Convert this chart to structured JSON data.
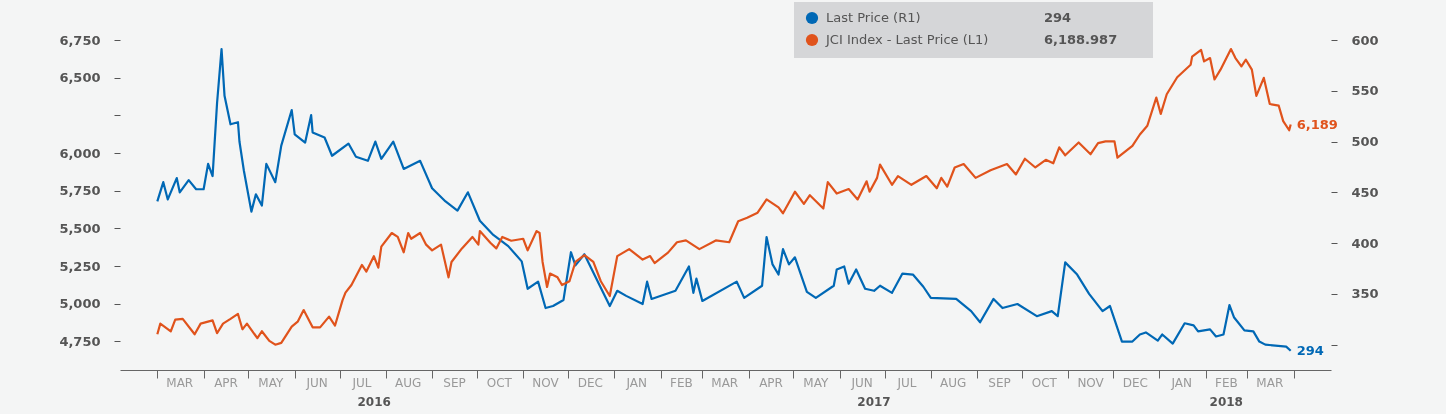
{
  "chart_data": {
    "type": "line",
    "legend": "top",
    "line_style": "solid",
    "xlim": [
      "2016-02-05",
      "2018-04-26"
    ],
    "xticks": [
      {
        "value": "2016-03-01",
        "label": null
      },
      {
        "value": "2016-03-16",
        "label": "MAR"
      },
      {
        "value": "2016-04-01",
        "label": null
      },
      {
        "value": "2016-04-16",
        "label": "APR"
      },
      {
        "value": "2016-05-01",
        "label": null
      },
      {
        "value": "2016-05-16",
        "label": "MAY"
      },
      {
        "value": "2016-06-01",
        "label": null
      },
      {
        "value": "2016-06-16",
        "label": "JUN"
      },
      {
        "value": "2016-07-01",
        "label": null
      },
      {
        "value": "2016-07-16",
        "label": "JUL"
      },
      {
        "value": "2016-08-01",
        "label": null
      },
      {
        "value": "2016-08-16",
        "label": "AUG"
      },
      {
        "value": "2016-09-01",
        "label": null
      },
      {
        "value": "2016-09-16",
        "label": "SEP"
      },
      {
        "value": "2016-10-01",
        "label": null
      },
      {
        "value": "2016-10-16",
        "label": "OCT"
      },
      {
        "value": "2016-11-01",
        "label": null
      },
      {
        "value": "2016-11-16",
        "label": "NOV"
      },
      {
        "value": "2016-12-01",
        "label": null
      },
      {
        "value": "2016-12-16",
        "label": "DEC"
      },
      {
        "value": "2017-01-01",
        "label": null
      },
      {
        "value": "2017-01-16",
        "label": "JAN"
      },
      {
        "value": "2017-02-01",
        "label": null
      },
      {
        "value": "2017-02-15",
        "label": "FEB"
      },
      {
        "value": "2017-03-01",
        "label": null
      },
      {
        "value": "2017-03-16",
        "label": "MAR"
      },
      {
        "value": "2017-04-01",
        "label": null
      },
      {
        "value": "2017-04-16",
        "label": "APR"
      },
      {
        "value": "2017-05-01",
        "label": null
      },
      {
        "value": "2017-05-16",
        "label": "MAY"
      },
      {
        "value": "2017-06-01",
        "label": null
      },
      {
        "value": "2017-06-16",
        "label": "JUN"
      },
      {
        "value": "2017-07-01",
        "label": null
      },
      {
        "value": "2017-07-16",
        "label": "JUL"
      },
      {
        "value": "2017-08-01",
        "label": null
      },
      {
        "value": "2017-08-16",
        "label": "AUG"
      },
      {
        "value": "2017-09-01",
        "label": null
      },
      {
        "value": "2017-09-16",
        "label": "SEP"
      },
      {
        "value": "2017-10-01",
        "label": null
      },
      {
        "value": "2017-10-16",
        "label": "OCT"
      },
      {
        "value": "2017-11-01",
        "label": null
      },
      {
        "value": "2017-11-16",
        "label": "NOV"
      },
      {
        "value": "2017-12-01",
        "label": null
      },
      {
        "value": "2017-12-16",
        "label": "DEC"
      },
      {
        "value": "2018-01-01",
        "label": null
      },
      {
        "value": "2018-01-16",
        "label": "JAN"
      },
      {
        "value": "2018-02-01",
        "label": null
      },
      {
        "value": "2018-02-15",
        "label": "FEB"
      },
      {
        "value": "2018-03-01",
        "label": null
      },
      {
        "value": "2018-03-16",
        "label": "MAR"
      },
      {
        "value": "2018-04-01",
        "label": null
      }
    ],
    "ylim": [
      4560,
      6750
    ],
    "yticks": [
      {
        "value": 4750,
        "label": "4,750"
      },
      {
        "value": 5000,
        "label": "5,000"
      },
      {
        "value": 5250,
        "label": "5,250"
      },
      {
        "value": 5500,
        "label": "5,500"
      },
      {
        "value": 5750,
        "label": "5,750"
      },
      {
        "value": 6000,
        "label": "6,000"
      },
      {
        "value": 6250,
        "label": null
      },
      {
        "value": 6500,
        "label": "6,500"
      },
      {
        "value": 6750,
        "label": "6,750"
      }
    ],
    "y2lim": [
      275,
      600
    ],
    "y2ticks": [
      {
        "value": 300,
        "label": null
      },
      {
        "value": 350,
        "label": "350"
      },
      {
        "value": 400,
        "label": "400"
      },
      {
        "value": 450,
        "label": "450"
      },
      {
        "value": 500,
        "label": "500"
      },
      {
        "value": 550,
        "label": "550"
      },
      {
        "value": 600,
        "label": "600"
      }
    ],
    "annotations": [
      "294",
      "6,188.987",
      "2016",
      "2017",
      "2018"
    ],
    "series": [
      {
        "name": "Last Price (R1)",
        "color": "#0068b5",
        "axis": "y2",
        "x": [
          "2016-03-01",
          "2016-03-05",
          "2016-03-08",
          "2016-03-14",
          "2016-03-16",
          "2016-03-22",
          "2016-03-27",
          "2016-04-01",
          "2016-04-04",
          "2016-04-07",
          "2016-04-10",
          "2016-04-13",
          "2016-04-15",
          "2016-04-19",
          "2016-04-24",
          "2016-04-25",
          "2016-04-28",
          "2016-05-03",
          "2016-05-06",
          "2016-05-10",
          "2016-05-13",
          "2016-05-19",
          "2016-05-23",
          "2016-05-30",
          "2016-06-01",
          "2016-06-08",
          "2016-06-12",
          "2016-06-13",
          "2016-06-21",
          "2016-06-26",
          "2016-07-07",
          "2016-07-12",
          "2016-07-20",
          "2016-07-25",
          "2016-07-29",
          "2016-08-06",
          "2016-08-13",
          "2016-08-24",
          "2016-09-01",
          "2016-09-10",
          "2016-09-18",
          "2016-09-25",
          "2016-10-03",
          "2016-10-12",
          "2016-10-22",
          "2016-10-31",
          "2016-11-04",
          "2016-11-11",
          "2016-11-16",
          "2016-11-21",
          "2016-11-28",
          "2016-12-03",
          "2016-12-06",
          "2016-12-12",
          "2016-12-22",
          "2016-12-29",
          "2017-01-03",
          "2017-01-09",
          "2017-01-20",
          "2017-01-23",
          "2017-01-26",
          "2017-02-11",
          "2017-02-20",
          "2017-02-23",
          "2017-02-25",
          "2017-03-01",
          "2017-03-24",
          "2017-03-29",
          "2017-04-10",
          "2017-04-13",
          "2017-04-17",
          "2017-04-21",
          "2017-04-24",
          "2017-04-28",
          "2017-05-02",
          "2017-05-10",
          "2017-05-16",
          "2017-05-28",
          "2017-05-30",
          "2017-06-04",
          "2017-06-07",
          "2017-06-12",
          "2017-06-18",
          "2017-06-24",
          "2017-06-28",
          "2017-07-06",
          "2017-07-13",
          "2017-07-20",
          "2017-07-27",
          "2017-08-01",
          "2017-08-18",
          "2017-08-28",
          "2017-09-03",
          "2017-09-12",
          "2017-09-18",
          "2017-09-28",
          "2017-10-11",
          "2017-10-21",
          "2017-10-25",
          "2017-10-30",
          "2017-11-07",
          "2017-11-15",
          "2017-11-24",
          "2017-11-29",
          "2017-12-07",
          "2017-12-14",
          "2017-12-19",
          "2017-12-23",
          "2017-12-31",
          "2018-01-03",
          "2018-01-10",
          "2018-01-18",
          "2018-01-24",
          "2018-01-27",
          "2018-02-04",
          "2018-02-08",
          "2018-02-13",
          "2018-02-17",
          "2018-02-20",
          "2018-02-27",
          "2018-03-05",
          "2018-03-09",
          "2018-03-13",
          "2018-03-27",
          "2018-03-30"
        ],
        "values": [
          441,
          460,
          443,
          464,
          450,
          462,
          453,
          453,
          478,
          466,
          538,
          591,
          545,
          517,
          519,
          500,
          471,
          431,
          448,
          437,
          478,
          460,
          496,
          531,
          507,
          499,
          526,
          509,
          504,
          486,
          498,
          485,
          481,
          500,
          483,
          500,
          473,
          481,
          454,
          441,
          432,
          450,
          422,
          408,
          397,
          382,
          355,
          362,
          336,
          338,
          344,
          391,
          378,
          389,
          359,
          338,
          353,
          348,
          340,
          362,
          345,
          353,
          377,
          351,
          365,
          343,
          362,
          346,
          358,
          406,
          379,
          369,
          394,
          379,
          386,
          352,
          346,
          358,
          374,
          377,
          360,
          374,
          355,
          353,
          358,
          351,
          370,
          369,
          357,
          346,
          345,
          333,
          322,
          345,
          336,
          340,
          328,
          333,
          328,
          381,
          369,
          350,
          333,
          338,
          303,
          303,
          310,
          312,
          304,
          310,
          301,
          321,
          319,
          313,
          315,
          308,
          310,
          339,
          327,
          314,
          313,
          303,
          300,
          298,
          294
        ],
        "value_labels": [
          null,
          null,
          null,
          null,
          null,
          null,
          null,
          null,
          null,
          null,
          null,
          null,
          null,
          null,
          null,
          null,
          null,
          null,
          null,
          null,
          null,
          null,
          null,
          null,
          null,
          null,
          null,
          null,
          null,
          null,
          null,
          null,
          null,
          null,
          null,
          null,
          null,
          null,
          null,
          null,
          null,
          null,
          null,
          null,
          null,
          null,
          null,
          null,
          null,
          null,
          null,
          null,
          null,
          null,
          null,
          null,
          null,
          null,
          null,
          null,
          null,
          null,
          null,
          null,
          null,
          null,
          null,
          null,
          null,
          null,
          null,
          null,
          null,
          null,
          null,
          null,
          null,
          null,
          null,
          null,
          null,
          null,
          null,
          null,
          null,
          null,
          null,
          null,
          null,
          null,
          null,
          null,
          null,
          null,
          null,
          null,
          null,
          null,
          null,
          null,
          null,
          null,
          null,
          null,
          null,
          null,
          null,
          null,
          null,
          null,
          null,
          null,
          null,
          null,
          null,
          null,
          null,
          null,
          null,
          null,
          null,
          null,
          null,
          null,
          "294"
        ]
      },
      {
        "name": "JCI Index - Last Price (L1)",
        "color": "#e0531c",
        "x": [
          "2016-03-01",
          "2016-03-03",
          "2016-03-10",
          "2016-03-13",
          "2016-03-18",
          "2016-03-26",
          "2016-03-30",
          "2016-04-07",
          "2016-04-10",
          "2016-04-14",
          "2016-04-19",
          "2016-04-24",
          "2016-04-27",
          "2016-04-30",
          "2016-05-07",
          "2016-05-10",
          "2016-05-15",
          "2016-05-19",
          "2016-05-23",
          "2016-05-30",
          "2016-06-03",
          "2016-06-07",
          "2016-06-13",
          "2016-06-18",
          "2016-06-24",
          "2016-06-28",
          "2016-07-03",
          "2016-07-05",
          "2016-07-09",
          "2016-07-16",
          "2016-07-19",
          "2016-07-24",
          "2016-07-27",
          "2016-07-29",
          "2016-08-05",
          "2016-08-09",
          "2016-08-13",
          "2016-08-16",
          "2016-08-18",
          "2016-08-24",
          "2016-08-28",
          "2016-09-01",
          "2016-09-07",
          "2016-09-12",
          "2016-09-14",
          "2016-09-21",
          "2016-09-28",
          "2016-10-02",
          "2016-10-03",
          "2016-10-10",
          "2016-10-14",
          "2016-10-18",
          "2016-10-24",
          "2016-11-01",
          "2016-11-04",
          "2016-11-10",
          "2016-11-12",
          "2016-11-14",
          "2016-11-17",
          "2016-11-19",
          "2016-11-24",
          "2016-11-27",
          "2016-12-02",
          "2016-12-06",
          "2016-12-12",
          "2016-12-18",
          "2016-12-23",
          "2016-12-29",
          "2017-01-03",
          "2017-01-11",
          "2017-01-20",
          "2017-01-25",
          "2017-01-28",
          "2017-02-06",
          "2017-02-12",
          "2017-02-18",
          "2017-02-27",
          "2017-03-10",
          "2017-03-19",
          "2017-03-25",
          "2017-03-31",
          "2017-04-07",
          "2017-04-13",
          "2017-04-21",
          "2017-04-24",
          "2017-05-02",
          "2017-05-08",
          "2017-05-12",
          "2017-05-21",
          "2017-05-24",
          "2017-05-30",
          "2017-06-07",
          "2017-06-13",
          "2017-06-19",
          "2017-06-21",
          "2017-06-26",
          "2017-06-28",
          "2017-07-06",
          "2017-07-10",
          "2017-07-19",
          "2017-07-29",
          "2017-08-05",
          "2017-08-08",
          "2017-08-12",
          "2017-08-17",
          "2017-08-23",
          "2017-08-31",
          "2017-09-10",
          "2017-09-21",
          "2017-09-27",
          "2017-10-03",
          "2017-10-10",
          "2017-10-17",
          "2017-10-22",
          "2017-10-26",
          "2017-10-30",
          "2017-11-08",
          "2017-11-16",
          "2017-11-21",
          "2017-11-26",
          "2017-12-02",
          "2017-12-04",
          "2017-12-14",
          "2017-12-19",
          "2017-12-24",
          "2017-12-30",
          "2018-01-02",
          "2018-01-06",
          "2018-01-13",
          "2018-01-22",
          "2018-01-23",
          "2018-01-29",
          "2018-01-31",
          "2018-02-04",
          "2018-02-07",
          "2018-02-11",
          "2018-02-18",
          "2018-02-21",
          "2018-02-25",
          "2018-02-28",
          "2018-03-04",
          "2018-03-07",
          "2018-03-12",
          "2018-03-16",
          "2018-03-22",
          "2018-03-25",
          "2018-03-29",
          "2018-03-30"
        ],
        "values": [
          4797,
          4868,
          4817,
          4894,
          4899,
          4797,
          4868,
          4889,
          4804,
          4868,
          4899,
          4932,
          4830,
          4868,
          4771,
          4817,
          4753,
          4728,
          4740,
          4848,
          4881,
          4958,
          4843,
          4843,
          4914,
          4855,
          5022,
          5073,
          5124,
          5257,
          5213,
          5315,
          5239,
          5379,
          5469,
          5443,
          5341,
          5469,
          5431,
          5469,
          5392,
          5354,
          5392,
          5175,
          5277,
          5367,
          5443,
          5392,
          5482,
          5405,
          5367,
          5443,
          5418,
          5431,
          5354,
          5482,
          5469,
          5277,
          5111,
          5200,
          5175,
          5124,
          5149,
          5277,
          5323,
          5277,
          5149,
          5051,
          5316,
          5362,
          5293,
          5316,
          5270,
          5339,
          5408,
          5420,
          5362,
          5420,
          5408,
          5547,
          5570,
          5604,
          5692,
          5639,
          5600,
          5743,
          5662,
          5720,
          5632,
          5807,
          5731,
          5761,
          5692,
          5812,
          5743,
          5835,
          5923,
          5789,
          5847,
          5789,
          5847,
          5766,
          5835,
          5777,
          5904,
          5927,
          5835,
          5886,
          5927,
          5858,
          5962,
          5904,
          5955,
          5932,
          6038,
          5985,
          6070,
          5992,
          6066,
          6077,
          6077,
          5969,
          6047,
          6123,
          6181,
          6368,
          6260,
          6390,
          6503,
          6586,
          6640,
          6684,
          6608,
          6630,
          6488,
          6553,
          6690,
          6630,
          6575,
          6619,
          6553,
          6379,
          6499,
          6325,
          6314,
          6212,
          6151,
          6189
        ],
        "value_labels": [
          null,
          null,
          null,
          null,
          null,
          null,
          null,
          null,
          null,
          null,
          null,
          null,
          null,
          null,
          null,
          null,
          null,
          null,
          null,
          null,
          null,
          null,
          null,
          null,
          null,
          null,
          null,
          null,
          null,
          null,
          null,
          null,
          null,
          null,
          null,
          null,
          null,
          null,
          null,
          null,
          null,
          null,
          null,
          null,
          null,
          null,
          null,
          null,
          null,
          null,
          null,
          null,
          null,
          null,
          null,
          null,
          null,
          null,
          null,
          null,
          null,
          null,
          null,
          null,
          null,
          null,
          null,
          null,
          null,
          null,
          null,
          null,
          null,
          null,
          null,
          null,
          null,
          null,
          null,
          null,
          null,
          null,
          null,
          null,
          null,
          null,
          null,
          null,
          null,
          null,
          null,
          null,
          null,
          null,
          null,
          null,
          null,
          null,
          null,
          null,
          null,
          null,
          null,
          null,
          null,
          null,
          null,
          null,
          null,
          null,
          null,
          null,
          null,
          null,
          null,
          null,
          null,
          null,
          null,
          null,
          null,
          null,
          null,
          null,
          null,
          null,
          null,
          null,
          null,
          null,
          null,
          null,
          null,
          null,
          null,
          null,
          null,
          null,
          null,
          null,
          null,
          null,
          null,
          null,
          null,
          null,
          null,
          "6,189"
        ]
      }
    ]
  }
}
